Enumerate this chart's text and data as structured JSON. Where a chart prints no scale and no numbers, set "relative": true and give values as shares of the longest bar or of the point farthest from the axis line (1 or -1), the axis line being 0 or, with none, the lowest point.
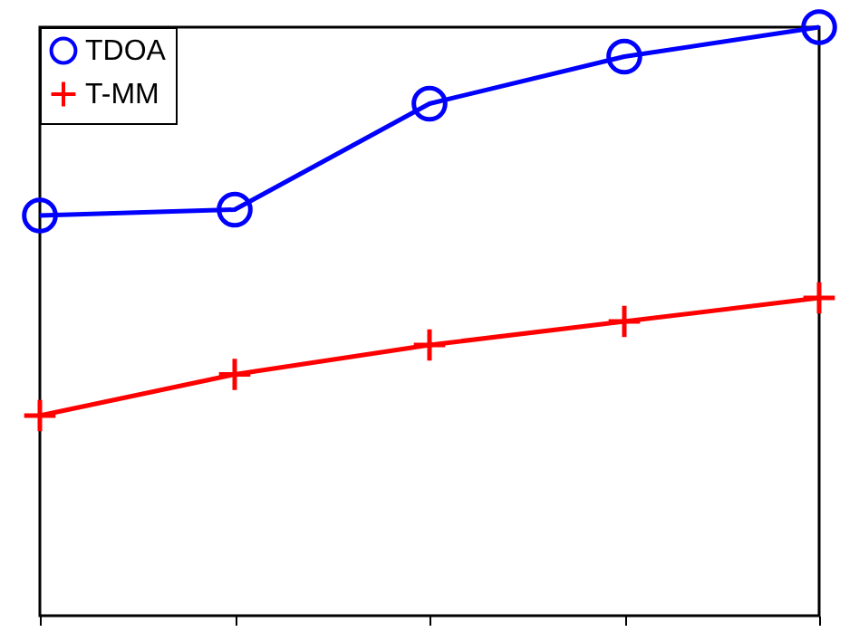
{
  "chart_data": {
    "type": "line",
    "relative": true,
    "categories": [
      null,
      null,
      null,
      null,
      null
    ],
    "legend": "top left",
    "series": [
      {
        "name": "TDOA",
        "color": "#0000ff",
        "marker": "circle",
        "values": [
          0.68,
          0.69,
          0.87,
          0.95,
          1
        ]
      },
      {
        "name": "T-MM",
        "color": "#ff0000",
        "marker": "cross",
        "values": [
          0.34,
          0.41,
          0.46,
          0.5,
          0.54
        ]
      }
    ]
  }
}
